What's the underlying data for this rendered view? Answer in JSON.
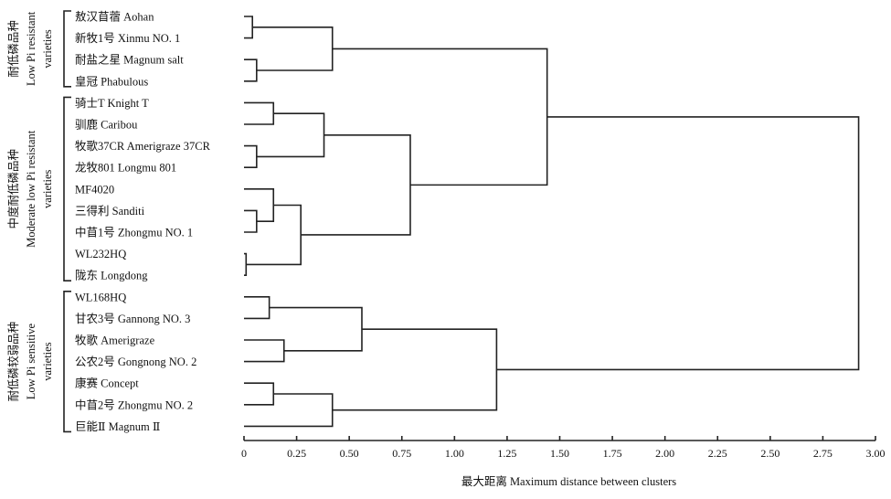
{
  "chart_data": {
    "type": "dendrogram",
    "xlabel": "最大距离 Maximum distance between clusters",
    "xlim": [
      0,
      3.0
    ],
    "xticks": [
      "0",
      "0.25",
      "0.50",
      "0.75",
      "1.00",
      "1.25",
      "1.50",
      "1.75",
      "2.00",
      "2.25",
      "2.50",
      "2.75",
      "3.00"
    ],
    "leaves": [
      "敖汉苜蓿 Aohan",
      "新牧1号 Xinmu NO. 1",
      "耐盐之星 Magnum salt",
      "皇冠 Phabulous",
      "骑士T Knight T",
      "驯鹿 Caribou",
      "牧歌37CR Amerigraze 37CR",
      "龙牧801 Longmu 801",
      "MF4020",
      "三得利 Sanditi",
      "中苜1号 Zhongmu NO. 1",
      "WL232HQ",
      "陇东 Longdong",
      "WL168HQ",
      "甘农3号 Gannong NO. 3",
      "牧歌 Amerigraze",
      "公农2号 Gongnong NO. 2",
      "康赛 Concept",
      "中苜2号 Zhongmu NO. 2",
      "巨能Ⅱ Magnum Ⅱ"
    ],
    "merges": [
      {
        "a": "L0",
        "b": "L1",
        "h": 0.04
      },
      {
        "a": "L2",
        "b": "L3",
        "h": 0.06
      },
      {
        "a": "M0",
        "b": "M1",
        "h": 0.42
      },
      {
        "a": "L4",
        "b": "L5",
        "h": 0.14
      },
      {
        "a": "L6",
        "b": "L7",
        "h": 0.06
      },
      {
        "a": "M3",
        "b": "M4",
        "h": 0.38
      },
      {
        "a": "L9",
        "b": "L10",
        "h": 0.06
      },
      {
        "a": "L8",
        "b": "M6",
        "h": 0.14
      },
      {
        "a": "L11",
        "b": "L12",
        "h": 0.01
      },
      {
        "a": "M7",
        "b": "M8",
        "h": 0.27
      },
      {
        "a": "M5",
        "b": "M9",
        "h": 0.79
      },
      {
        "a": "M2",
        "b": "M10",
        "h": 1.44
      },
      {
        "a": "L13",
        "b": "L14",
        "h": 0.12
      },
      {
        "a": "L15",
        "b": "L16",
        "h": 0.19
      },
      {
        "a": "M12",
        "b": "M13",
        "h": 0.56
      },
      {
        "a": "L17",
        "b": "L18",
        "h": 0.14
      },
      {
        "a": "M15",
        "b": "L19",
        "h": 0.42
      },
      {
        "a": "M14",
        "b": "M16",
        "h": 1.2
      },
      {
        "a": "M11",
        "b": "M17",
        "h": 2.92
      }
    ],
    "groups": [
      {
        "zh": "耐低磷品种",
        "en1": "Low Pi resistant",
        "en2": "varieties",
        "first": 0,
        "last": 3
      },
      {
        "zh": "中度耐低磷品种",
        "en1": "Moderate low Pi resistant",
        "en2": "varieties",
        "first": 4,
        "last": 12
      },
      {
        "zh": "耐低磷较弱品种",
        "en1": "Low Pi sensitive",
        "en2": "varieties",
        "first": 13,
        "last": 19
      }
    ]
  }
}
